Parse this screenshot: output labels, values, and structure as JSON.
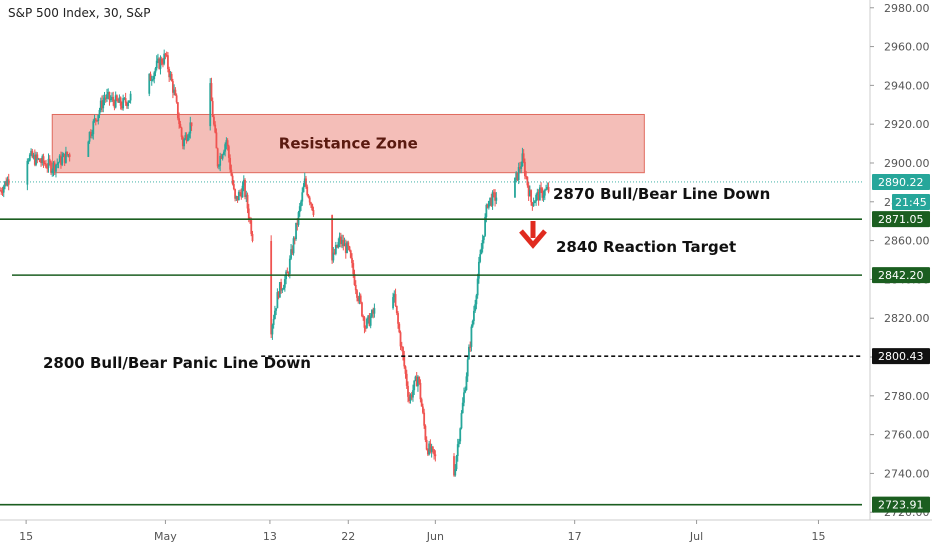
{
  "chart_data": {
    "type": "candlestick",
    "title": "S&P 500 Index, 30, S&P",
    "symbol": "S&P 500 Index",
    "interval": "30",
    "source": "S&P",
    "y_axis": {
      "range": [
        2716,
        2984
      ],
      "ticks": [
        2980,
        2960,
        2940,
        2920,
        2900,
        2880,
        2860,
        2840,
        2820,
        2800,
        2780,
        2760,
        2740,
        2720
      ],
      "tick_labels": [
        "2980.00",
        "2960.00",
        "2940.00",
        "2920.00",
        "2900.00",
        "2880.00",
        "2860.00",
        "2840.00",
        "2820.00",
        "2800.00",
        "2780.00",
        "2760.00",
        "2740.00",
        "2720.00"
      ]
    },
    "x_axis": {
      "range": [
        "2019-04-12",
        "2019-07-20"
      ],
      "ticks": [
        "2019-04-15",
        "2019-05-01",
        "2019-05-13",
        "2019-05-22",
        "2019-06-01",
        "2019-06-17",
        "2019-07-01",
        "2019-07-15"
      ],
      "tick_labels": [
        "15",
        "May",
        "13",
        "22",
        "Jun",
        "17",
        "Jul",
        "15"
      ]
    },
    "price_path": [
      [
        "2019-04-12",
        2886
      ],
      [
        "2019-04-15",
        2904
      ],
      [
        "2019-04-18",
        2898
      ],
      [
        "2019-04-22",
        2912
      ],
      [
        "2019-04-24",
        2934
      ],
      [
        "2019-04-26",
        2930
      ],
      [
        "2019-04-29",
        2942
      ],
      [
        "2019-04-30",
        2950
      ],
      [
        "2019-05-01",
        2955
      ],
      [
        "2019-05-02",
        2936
      ],
      [
        "2019-05-03",
        2910
      ],
      [
        "2019-05-06",
        2944
      ],
      [
        "2019-05-07",
        2900
      ],
      [
        "2019-05-08",
        2912
      ],
      [
        "2019-05-09",
        2880
      ],
      [
        "2019-05-10",
        2888
      ],
      [
        "2019-05-13",
        2812
      ],
      [
        "2019-05-14",
        2834
      ],
      [
        "2019-05-15",
        2842
      ],
      [
        "2019-05-17",
        2890
      ],
      [
        "2019-05-20",
        2848
      ],
      [
        "2019-05-21",
        2860
      ],
      [
        "2019-05-22",
        2855
      ],
      [
        "2019-05-23",
        2834
      ],
      [
        "2019-05-24",
        2816
      ],
      [
        "2019-05-27",
        2838
      ],
      [
        "2019-05-29",
        2778
      ],
      [
        "2019-05-30",
        2790
      ],
      [
        "2019-05-31",
        2754
      ],
      [
        "2019-06-03",
        2735
      ],
      [
        "2019-06-04",
        2770
      ],
      [
        "2019-06-05",
        2808
      ],
      [
        "2019-06-06",
        2846
      ],
      [
        "2019-06-07",
        2880
      ],
      [
        "2019-06-10",
        2888
      ],
      [
        "2019-06-11",
        2902
      ],
      [
        "2019-06-12",
        2880
      ],
      [
        "2019-06-13",
        2884
      ],
      [
        "2019-06-14",
        2886
      ]
    ],
    "annotations": [
      {
        "type": "zone",
        "label": "Resistance Zone",
        "y_range": [
          2895,
          2925
        ],
        "x_range": [
          "2019-04-18",
          "2019-06-25"
        ],
        "color": "#f0a8a0"
      },
      {
        "type": "hline",
        "label": "2870 Bull/Bear Line Down",
        "y": 2871.05,
        "style": "solid",
        "color": "#1b5e20"
      },
      {
        "type": "hline",
        "label": "2840 Reaction Target",
        "y": 2842.2,
        "style": "solid",
        "color": "#1b5e20"
      },
      {
        "type": "hline",
        "label": "2800 Bull/Bear Panic Line Down",
        "y": 2800.43,
        "style": "dashed",
        "color": "#111111"
      },
      {
        "type": "hline",
        "label": "",
        "y": 2723.91,
        "style": "solid",
        "color": "#1b5e20"
      },
      {
        "type": "hline",
        "label": "",
        "y": 2890.22,
        "style": "dotted",
        "color": "#26a69a"
      },
      {
        "type": "arrow",
        "direction": "down",
        "color": "#e02b1f"
      }
    ],
    "price_tags": [
      {
        "value": "2890.22",
        "color": "#26a69a"
      },
      {
        "value": "21:45",
        "color": "#26a69a"
      },
      {
        "value": "2871.05",
        "color": "#1b5e20"
      },
      {
        "value": "2842.20",
        "color": "#1b5e20"
      },
      {
        "value": "2800.43",
        "color": "#111111"
      },
      {
        "value": "2723.91",
        "color": "#1b5e20"
      }
    ],
    "colors": {
      "up": "#26a69a",
      "down": "#ef5350"
    },
    "grid": false
  }
}
